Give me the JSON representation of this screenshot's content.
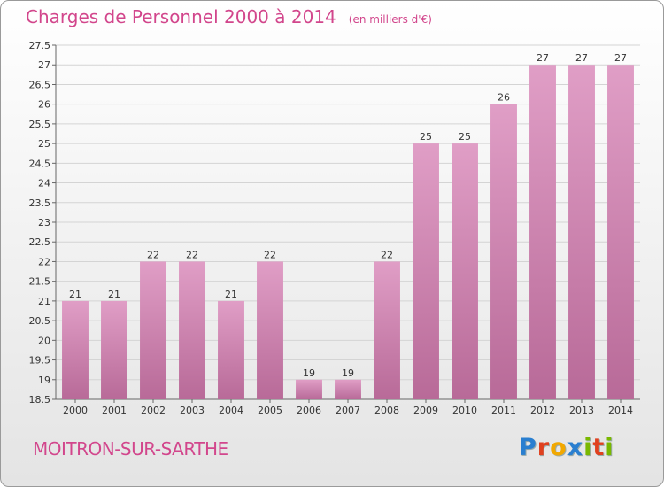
{
  "title": "Charges de Personnel 2000 à 2014",
  "unit": "(en milliers d'€)",
  "commune": "MOITRON-SUR-SARTHE",
  "logo": {
    "letters": [
      "P",
      "r",
      "o",
      "x",
      "i",
      "t",
      "i"
    ],
    "colors": [
      "#2a7fd0",
      "#e0411f",
      "#f2a800",
      "#2a7fd0",
      "#7ab800",
      "#e0411f",
      "#7ab800"
    ]
  },
  "chart_data": {
    "type": "bar",
    "categories": [
      "2000",
      "2001",
      "2002",
      "2003",
      "2004",
      "2005",
      "2006",
      "2007",
      "2008",
      "2009",
      "2010",
      "2011",
      "2012",
      "2013",
      "2014"
    ],
    "values": [
      21,
      21,
      22,
      22,
      21,
      22,
      19,
      19,
      22,
      25,
      25,
      26,
      27,
      27,
      27
    ],
    "data_labels": [
      "21",
      "21",
      "22",
      "22",
      "21",
      "22",
      "19",
      "19",
      "22",
      "25",
      "25",
      "26",
      "27",
      "27",
      "27"
    ],
    "ylim": [
      18.5,
      27.5
    ],
    "yticks": [
      "18.5",
      "19",
      "19.5",
      "20",
      "20.5",
      "21",
      "21.5",
      "22",
      "22.5",
      "23",
      "23.5",
      "24",
      "24.5",
      "25",
      "25.5",
      "26",
      "26.5",
      "27",
      "27.5"
    ],
    "grid": true,
    "bar_color": "#e09ec6",
    "bar_color_dark": "#b86a98"
  }
}
